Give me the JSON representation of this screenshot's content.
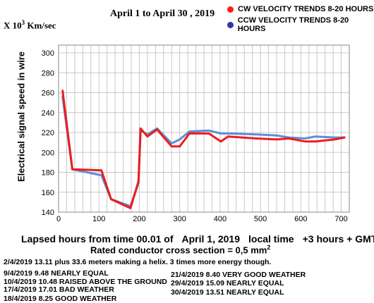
{
  "header": {
    "period": "April  1 to April 30 , 2019",
    "y_unit_prefix": "X 10",
    "y_unit_exp": "3",
    "y_unit_suffix": " Km/sec"
  },
  "legend": [
    {
      "label": "CW VELOCITY TRENDS 8-20 HOURS",
      "color": "#ff1a1a"
    },
    {
      "label": "CCW VELOCITY TRENDS 8-20 HOURS",
      "color": "#2a3aa8"
    }
  ],
  "axes": {
    "ylabel": "Electrical signal speed in wire",
    "xlabel_parts": [
      "Lapsed hours from time 00.01 of",
      "April  1, 2019",
      "local time",
      "+3 hours + GMT"
    ],
    "conductor_text": "Rated conductor cross section = 0,5 mm",
    "conductor_exp": "2"
  },
  "notes": [
    "2/4/2019 13.11 plus 33.6 meters making a helix. 3 times more energy though.",
    "9/4/2019   9.48 NEARLY EQUAL",
    "10/4/2019 10.48 RAISED ABOVE THE GROUND",
    "17/4/2019  17.01  BAD WEATHER",
    "18/4/2019    8.25    GOOD WEATHER",
    "21/4/2019    8.40    VERY GOOD WEATHER",
    "29/4/2019  15.09 NEARLY EQUAL",
    "30/4/2019  13.51 NEARLY EQUAL"
  ],
  "chart_data": {
    "type": "line",
    "title": "April  1 to April 30 , 2019",
    "xlabel": "Lapsed hours from time 00.01 of    April  1, 2019   local time   +3 hours + GMT",
    "ylabel": "Electrical signal speed in wire",
    "xlim": [
      0,
      720
    ],
    "ylim": [
      140,
      300
    ],
    "x_ticks": [
      0,
      100,
      200,
      300,
      400,
      500,
      600,
      700
    ],
    "y_ticks": [
      140,
      160,
      180,
      200,
      220,
      240,
      260,
      280,
      300
    ],
    "x_tick_labels": [
      "0",
      "100",
      "200",
      "300",
      "400",
      "500",
      "600",
      "700"
    ],
    "y_tick_labels": [
      "140",
      "160",
      "180",
      "200",
      "220",
      "240",
      "260",
      "280",
      "300"
    ],
    "grid": true,
    "legend_position": "top-right",
    "series": [
      {
        "name": "CCW VELOCITY TRENDS 8-20 HOURS",
        "color": "#5b8ed6",
        "points": [
          [
            10,
            256
          ],
          [
            34,
            183
          ],
          [
            106,
            177
          ],
          [
            130,
            153
          ],
          [
            178,
            146
          ],
          [
            198,
            169
          ],
          [
            203,
            222
          ],
          [
            220,
            218
          ],
          [
            244,
            224
          ],
          [
            280,
            209
          ],
          [
            300,
            213
          ],
          [
            324,
            221
          ],
          [
            372,
            222
          ],
          [
            402,
            219
          ],
          [
            420,
            219
          ],
          [
            490,
            218
          ],
          [
            540,
            217
          ],
          [
            570,
            215
          ],
          [
            610,
            214
          ],
          [
            636,
            216
          ],
          [
            684,
            215
          ],
          [
            708,
            215
          ]
        ]
      },
      {
        "name": "CW VELOCITY TRENDS 8-20 HOURS",
        "color": "#ee1c1c",
        "points": [
          [
            10,
            262
          ],
          [
            34,
            183
          ],
          [
            106,
            182
          ],
          [
            130,
            153
          ],
          [
            178,
            144
          ],
          [
            198,
            171
          ],
          [
            203,
            224
          ],
          [
            220,
            216
          ],
          [
            244,
            223
          ],
          [
            280,
            206
          ],
          [
            300,
            206
          ],
          [
            324,
            219
          ],
          [
            372,
            219
          ],
          [
            402,
            211
          ],
          [
            420,
            216
          ],
          [
            490,
            214
          ],
          [
            540,
            213
          ],
          [
            570,
            214
          ],
          [
            610,
            211
          ],
          [
            636,
            211
          ],
          [
            684,
            213
          ],
          [
            708,
            215
          ]
        ]
      }
    ]
  }
}
